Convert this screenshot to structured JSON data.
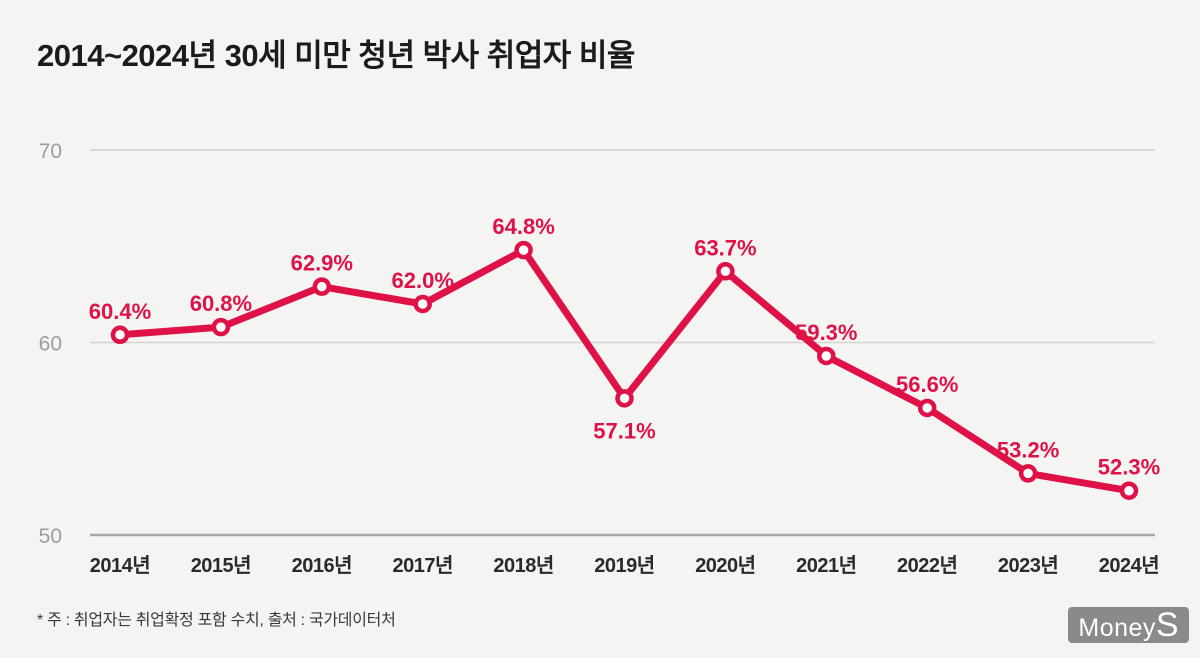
{
  "page": {
    "title": "2014~2024년 30세 미만 청년 박사 취업자 비율",
    "footnote": "* 주 : 취업자는 취업확정 포함 수치, 출처 : 국가데이터처",
    "logo": {
      "text_main": "Money",
      "text_accent": "S"
    }
  },
  "colors": {
    "background": "#f4f4f2",
    "series": "#df1248",
    "marker_fill": "#ffffff",
    "grid_line": "#d3d2d0",
    "axis_line": "#a8a7a5",
    "ytick_label": "#9e9d9b",
    "xtick_label": "#2b2a29",
    "title_text": "#1c1b1a",
    "footnote_text": "#3a3938",
    "logo_bg": "#8b8a89",
    "logo_text": "#ffffff"
  },
  "chart_data": {
    "type": "line",
    "title": "2014~2024년 30세 미만 청년 박사 취업자 비율",
    "categories": [
      "2014년",
      "2015년",
      "2016년",
      "2017년",
      "2018년",
      "2019년",
      "2020년",
      "2021년",
      "2022년",
      "2023년",
      "2024년"
    ],
    "values": [
      60.4,
      60.8,
      62.9,
      62.0,
      64.8,
      57.1,
      63.7,
      59.3,
      56.6,
      53.2,
      52.3
    ],
    "labels": [
      "60.4%",
      "60.8%",
      "62.9%",
      "62.0%",
      "64.8%",
      "57.1%",
      "63.7%",
      "59.3%",
      "56.6%",
      "53.2%",
      "52.3%"
    ],
    "label_position": [
      "above",
      "above",
      "above",
      "above",
      "above",
      "below",
      "above",
      "above",
      "above",
      "above",
      "above"
    ],
    "yticks": [
      50,
      60,
      70
    ],
    "ylim": [
      50,
      70
    ],
    "xlabel": "",
    "ylabel": "",
    "grid": "horizontal",
    "legend": "none",
    "unit": "%"
  }
}
